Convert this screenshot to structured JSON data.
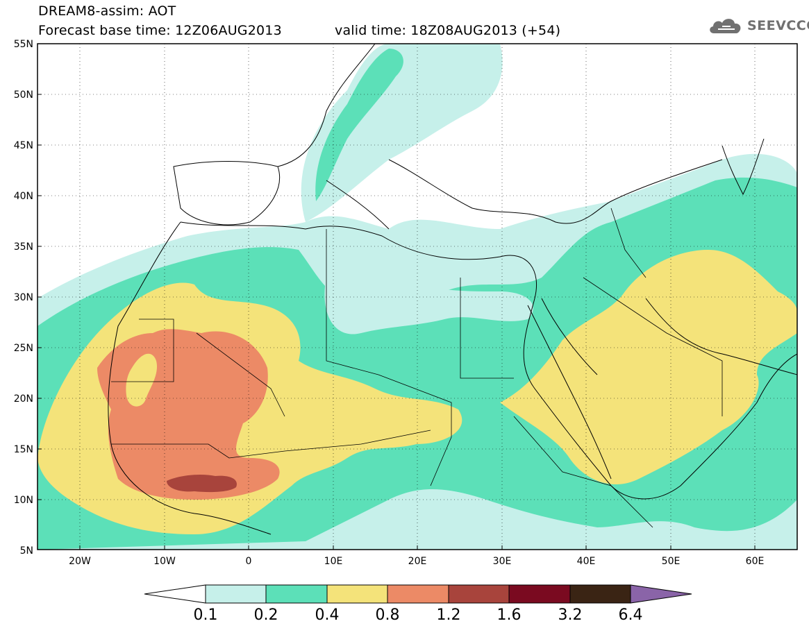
{
  "header": {
    "title": "DREAM8-assim: AOT",
    "base_time": "Forecast base time: 12Z06AUG2013",
    "valid_time": "valid time: 18Z08AUG2013 (+54)"
  },
  "logo": {
    "text": "SEEVCCC",
    "icon": "cloud-icon"
  },
  "axes": {
    "lat_ticks": [
      "55N",
      "50N",
      "45N",
      "40N",
      "35N",
      "30N",
      "25N",
      "20N",
      "15N",
      "10N",
      "5N"
    ],
    "lon_ticks": [
      "20W",
      "10W",
      "0",
      "10E",
      "20E",
      "30E",
      "40E",
      "50E",
      "60E"
    ]
  },
  "colorbar": {
    "labels": [
      "0.1",
      "0.2",
      "0.4",
      "0.8",
      "1.2",
      "1.6",
      "3.2",
      "6.4"
    ],
    "colors": [
      "#c6f0ea",
      "#5ce0b8",
      "#f4e37a",
      "#ec8a66",
      "#a8443c",
      "#7a0a20",
      "#3a2414",
      "#8a64a8"
    ]
  },
  "field_colors": {
    "c1": "#c6f0ea",
    "c2": "#5ce0b8",
    "c3": "#f4e37a",
    "c4": "#ec8a66",
    "c5": "#a8443c"
  }
}
